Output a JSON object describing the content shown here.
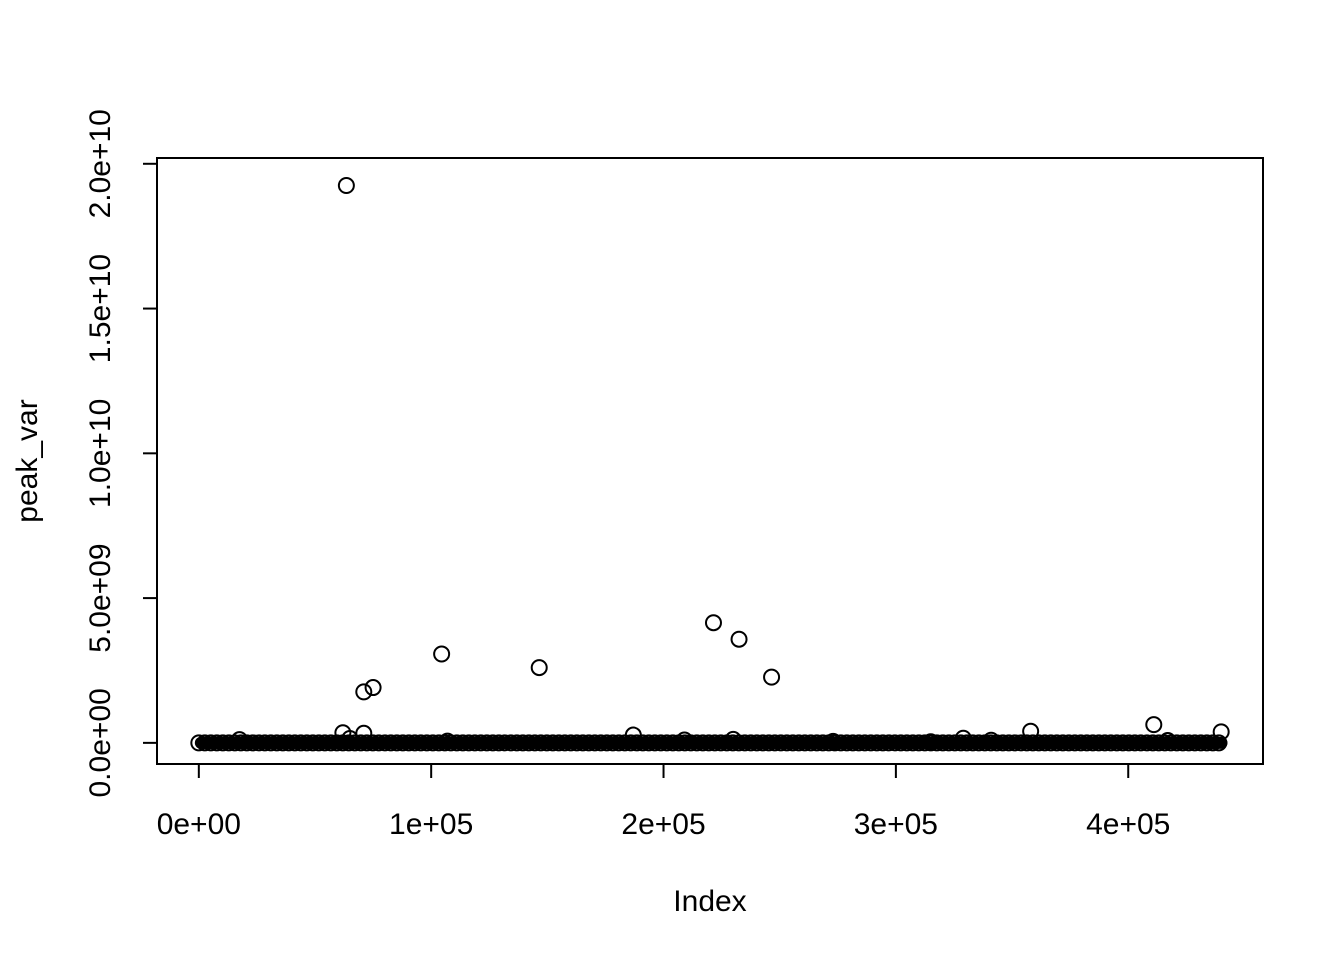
{
  "chart_data": {
    "type": "scatter",
    "title": "",
    "xlabel": "Index",
    "ylabel": "peak_var",
    "xlim": [
      -18000,
      458000
    ],
    "ylim": [
      -730000000,
      20200000000
    ],
    "x_ticks": [
      {
        "value": 0,
        "label": "0e+00"
      },
      {
        "value": 100000,
        "label": "1e+05"
      },
      {
        "value": 200000,
        "label": "2e+05"
      },
      {
        "value": 300000,
        "label": "3e+05"
      },
      {
        "value": 400000,
        "label": "4e+05"
      }
    ],
    "y_ticks": [
      {
        "value": 0,
        "label": "0.0e+00"
      },
      {
        "value": 5000000000,
        "label": "5.0e+09"
      },
      {
        "value": 10000000000,
        "label": "1.0e+10"
      },
      {
        "value": 15000000000,
        "label": "1.5e+10"
      },
      {
        "value": 20000000000,
        "label": "2.0e+10"
      }
    ],
    "grid": false,
    "legend": "none",
    "point_style": "open-circle",
    "baseline_band": {
      "x_from": 0,
      "x_to": 441000,
      "y": 0
    },
    "points": [
      {
        "x": 63500,
        "y": 19250000000
      },
      {
        "x": 221500,
        "y": 4150000000
      },
      {
        "x": 232500,
        "y": 3580000000
      },
      {
        "x": 104500,
        "y": 3070000000
      },
      {
        "x": 146500,
        "y": 2600000000
      },
      {
        "x": 246500,
        "y": 2270000000
      },
      {
        "x": 75000,
        "y": 1910000000
      },
      {
        "x": 71000,
        "y": 1760000000
      },
      {
        "x": 411000,
        "y": 630000000
      },
      {
        "x": 358000,
        "y": 400000000
      },
      {
        "x": 440000,
        "y": 380000000
      },
      {
        "x": 62000,
        "y": 350000000
      },
      {
        "x": 71000,
        "y": 330000000
      },
      {
        "x": 187000,
        "y": 270000000
      },
      {
        "x": 329000,
        "y": 160000000
      },
      {
        "x": 65000,
        "y": 150000000
      },
      {
        "x": 230000,
        "y": 120000000
      },
      {
        "x": 17500,
        "y": 110000000
      },
      {
        "x": 209000,
        "y": 100000000
      },
      {
        "x": 341000,
        "y": 90000000
      },
      {
        "x": 417000,
        "y": 80000000
      },
      {
        "x": 107000,
        "y": 60000000
      },
      {
        "x": 273000,
        "y": 50000000
      },
      {
        "x": 315000,
        "y": 40000000
      }
    ]
  }
}
